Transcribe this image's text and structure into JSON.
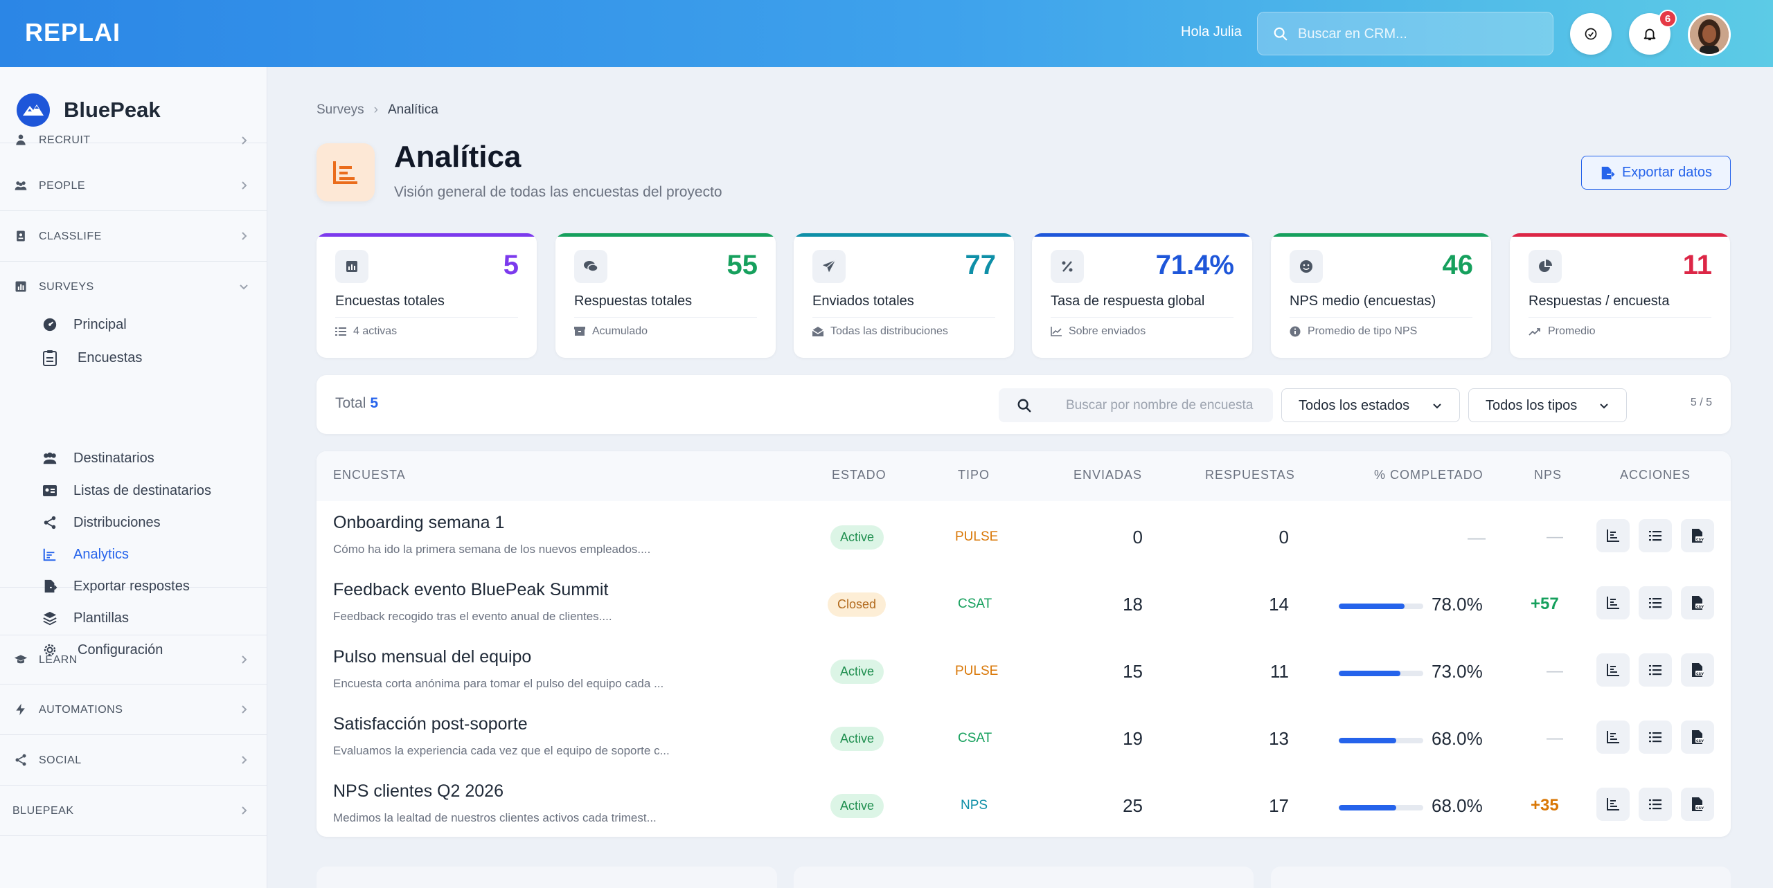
{
  "topbar": {
    "brand": "REPLAI",
    "greeting": "Hola Julia",
    "search_placeholder": "Buscar en CRM...",
    "notification_count": "6"
  },
  "sidebar": {
    "org_name": "BluePeak",
    "sections": [
      {
        "label": "RECRUIT"
      },
      {
        "label": "PEOPLE"
      },
      {
        "label": "CLASSLIFE"
      },
      {
        "label": "SURVEYS"
      },
      {
        "label": "LEARN"
      },
      {
        "label": "AUTOMATIONS"
      },
      {
        "label": "SOCIAL"
      },
      {
        "label": "BLUEPEAK"
      }
    ],
    "survey_items": [
      {
        "label": "Principal"
      },
      {
        "label": "Encuestas"
      },
      {
        "label": "Destinatarios"
      },
      {
        "label": "Listas de destinatarios"
      },
      {
        "label": "Distribuciones"
      },
      {
        "label": "Analytics"
      },
      {
        "label": "Exportar respostes"
      },
      {
        "label": "Plantillas"
      },
      {
        "label": "Configuración"
      }
    ]
  },
  "page": {
    "breadcrumb_parent": "Surveys",
    "breadcrumb_current": "Analítica",
    "title": "Analítica",
    "subtitle": "Visión general de todas las encuestas del proyecto",
    "export_label": "Exportar datos"
  },
  "kpis": [
    {
      "value": "5",
      "label": "Encuestas totales",
      "foot": "4 activas",
      "color": "#7c3aed"
    },
    {
      "value": "55",
      "label": "Respuestas totales",
      "foot": "Acumulado",
      "color": "#16a05d"
    },
    {
      "value": "77",
      "label": "Enviados totales",
      "foot": "Todas las distribuciones",
      "color": "#0e8fa7"
    },
    {
      "value": "71.4%",
      "label": "Tasa de respuesta global",
      "foot": "Sobre enviados",
      "color": "#1e56d9"
    },
    {
      "value": "46",
      "label": "NPS medio (encuestas)",
      "foot": "Promedio de tipo NPS",
      "color": "#16a05d"
    },
    {
      "value": "11",
      "label": "Respuestas / encuesta",
      "foot": "Promedio",
      "color": "#dc2646"
    }
  ],
  "filters": {
    "total_label": "Total",
    "total_value": "5",
    "search_placeholder": "Buscar por nombre de encuesta",
    "status_select": "Todos los estados",
    "type_select": "Todos los tipos",
    "count": "5 / 5"
  },
  "table": {
    "headers": [
      "ENCUESTA",
      "ESTADO",
      "TIPO",
      "ENVIADAS",
      "RESPUESTAS",
      "% COMPLETADO",
      "NPS",
      "ACCIONES"
    ],
    "rows": [
      {
        "name": "Onboarding semana 1",
        "desc": "Cómo ha ido la primera semana de los nuevos empleados....",
        "status": "Active",
        "type": "PULSE",
        "sent": "0",
        "responses": "0",
        "completed": "—",
        "completed_fraction": 0,
        "nps": "—"
      },
      {
        "name": "Feedback evento BluePeak Summit",
        "desc": "Feedback recogido tras el evento anual de clientes....",
        "status": "Closed",
        "type": "CSAT",
        "sent": "18",
        "responses": "14",
        "completed": "78.0%",
        "completed_fraction": 0.78,
        "nps": "+57"
      },
      {
        "name": "Pulso mensual del equipo",
        "desc": "Encuesta corta anónima para tomar el pulso del equipo cada ...",
        "status": "Active",
        "type": "PULSE",
        "sent": "15",
        "responses": "11",
        "completed": "73.0%",
        "completed_fraction": 0.73,
        "nps": "—"
      },
      {
        "name": "Satisfacción post-soporte",
        "desc": "Evaluamos la experiencia cada vez que el equipo de soporte c...",
        "status": "Active",
        "type": "CSAT",
        "sent": "19",
        "responses": "13",
        "completed": "68.0%",
        "completed_fraction": 0.68,
        "nps": "—"
      },
      {
        "name": "NPS clientes Q2 2026",
        "desc": "Medimos la lealtad de nuestros clientes activos cada trimest...",
        "status": "Active",
        "type": "NPS",
        "sent": "25",
        "responses": "17",
        "completed": "68.0%",
        "completed_fraction": 0.68,
        "nps": "+35"
      }
    ]
  },
  "colors": {
    "accent": "#2563eb",
    "pulse": "#d97706",
    "csat": "#16a05d",
    "nps_type": "#0e8fa7",
    "nps_high": "#16a05d",
    "nps_mid": "#d97706"
  }
}
